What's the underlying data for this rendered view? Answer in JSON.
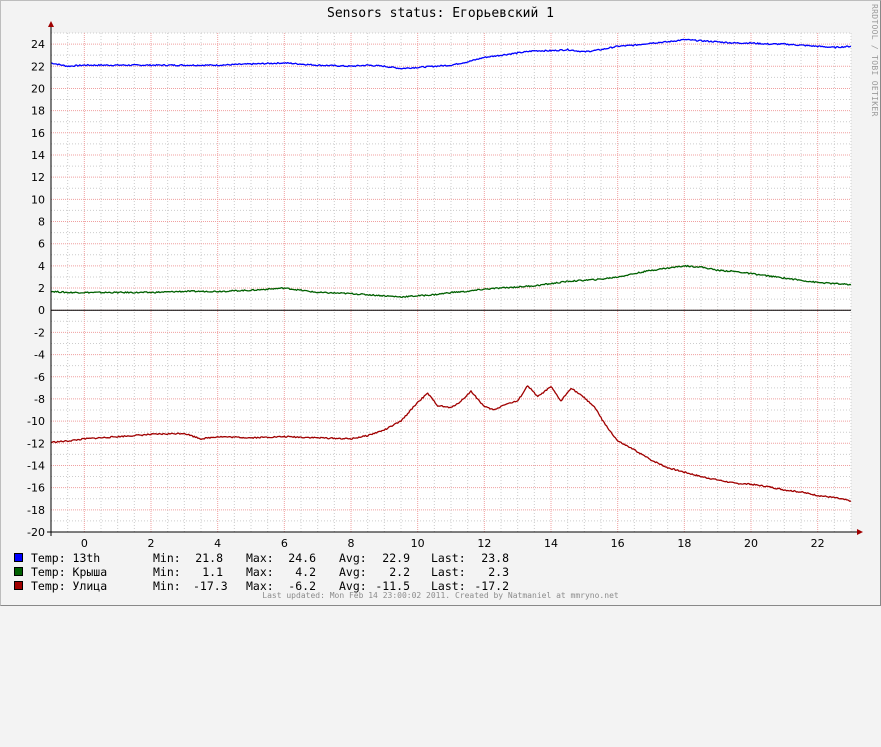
{
  "title": "Sensors status: Егорьевский 1",
  "watermark": "RRDTOOL / TOBI OETIKER",
  "footer": "Last updated: Mon Feb 14 23:00:02 2011. Created by Natmaniel at mmryno.net",
  "colors": {
    "background": "#f3f3f3",
    "plot": "#ffffff",
    "grid_major": "#f0a0a0",
    "grid_minor": "#cccccc",
    "axis_arrow": "#a00000",
    "zero_line": "#000000"
  },
  "legend": [
    {
      "label": "Temp: 13th",
      "color": "#0000ff",
      "min_label": "Min:",
      "min": "21.8",
      "max_label": "Max:",
      "max": "24.6",
      "avg_label": "Avg:",
      "avg": "22.9",
      "last_label": "Last:",
      "last": "23.8"
    },
    {
      "label": "Temp: Крыша",
      "color": "#006000",
      "min_label": "Min:",
      "min": "1.1",
      "max_label": "Max:",
      "max": "4.2",
      "avg_label": "Avg:",
      "avg": "2.2",
      "last_label": "Last:",
      "last": "2.3"
    },
    {
      "label": "Temp: Улица",
      "color": "#a00000",
      "min_label": "Min:",
      "min": "-17.3",
      "max_label": "Max:",
      "max": "-6.2",
      "avg_label": "Avg:",
      "avg": "-11.5",
      "last_label": "Last:",
      "last": "-17.2"
    }
  ],
  "chart_data": {
    "type": "line",
    "title": "Sensors status: Егорьевский 1",
    "xlim": [
      -1.0,
      23.0
    ],
    "ylim": [
      -20,
      25
    ],
    "x_ticks": [
      "0",
      "2",
      "4",
      "6",
      "8",
      "10",
      "12",
      "14",
      "16",
      "18",
      "20",
      "22"
    ],
    "y_ticks": [
      "24",
      "22",
      "20",
      "18",
      "16",
      "14",
      "12",
      "10",
      "8",
      "6",
      "4",
      "2",
      "0",
      "-2",
      "-4",
      "-6",
      "-8",
      "-10",
      "-12",
      "-14",
      "-16",
      "-18",
      "-20"
    ],
    "grid": true,
    "series": [
      {
        "name": "Temp: 13th",
        "color": "#0000ff",
        "x": [
          -1.0,
          -0.5,
          0,
          1,
          2,
          3,
          4,
          5,
          6,
          7,
          8,
          8.5,
          9,
          9.5,
          10,
          10.5,
          11,
          11.5,
          12,
          12.5,
          13,
          13.5,
          14,
          14.5,
          15,
          15.5,
          16,
          16.5,
          17,
          17.5,
          18,
          18.5,
          19,
          19.5,
          20,
          20.5,
          21,
          21.5,
          22,
          22.5,
          23.0
        ],
        "y": [
          22.3,
          22.0,
          22.1,
          22.1,
          22.1,
          22.1,
          22.1,
          22.2,
          22.3,
          22.1,
          22.0,
          22.1,
          22.0,
          21.8,
          21.9,
          22.0,
          22.1,
          22.4,
          22.8,
          23.0,
          23.2,
          23.4,
          23.4,
          23.5,
          23.3,
          23.5,
          23.8,
          23.9,
          24.1,
          24.2,
          24.4,
          24.3,
          24.2,
          24.1,
          24.1,
          24.0,
          24.0,
          23.9,
          23.8,
          23.7,
          23.8
        ]
      },
      {
        "name": "Temp: Крыша",
        "color": "#006000",
        "x": [
          -1.0,
          -0.5,
          0,
          1,
          2,
          3,
          4,
          5,
          6,
          7,
          8,
          8.5,
          9,
          9.5,
          10,
          10.5,
          11,
          11.5,
          12,
          12.5,
          13,
          13.5,
          14,
          14.5,
          15,
          15.5,
          16,
          16.5,
          17,
          17.5,
          18,
          18.5,
          19,
          19.5,
          20,
          20.5,
          21,
          21.5,
          22,
          22.5,
          23.0
        ],
        "y": [
          1.7,
          1.6,
          1.6,
          1.6,
          1.6,
          1.7,
          1.7,
          1.8,
          2.0,
          1.6,
          1.5,
          1.4,
          1.3,
          1.2,
          1.3,
          1.4,
          1.6,
          1.7,
          1.9,
          2.0,
          2.1,
          2.2,
          2.4,
          2.6,
          2.7,
          2.8,
          3.0,
          3.3,
          3.6,
          3.8,
          4.0,
          3.9,
          3.6,
          3.5,
          3.3,
          3.1,
          2.9,
          2.7,
          2.5,
          2.4,
          2.3
        ]
      },
      {
        "name": "Temp: Улица",
        "color": "#a00000",
        "x": [
          -1.0,
          -0.5,
          0,
          1,
          2,
          3,
          3.5,
          4,
          5,
          6,
          7,
          8,
          8.5,
          9,
          9.5,
          10,
          10.3,
          10.6,
          11,
          11.3,
          11.6,
          12,
          12.3,
          12.6,
          13,
          13.3,
          13.6,
          14,
          14.3,
          14.6,
          15,
          15.3,
          15.6,
          16,
          16.5,
          17,
          17.5,
          18,
          18.5,
          19,
          19.5,
          20,
          20.5,
          21,
          21.5,
          22,
          22.5,
          23.0
        ],
        "y": [
          -11.9,
          -11.8,
          -11.6,
          -11.4,
          -11.2,
          -11.1,
          -11.6,
          -11.4,
          -11.5,
          -11.4,
          -11.5,
          -11.6,
          -11.3,
          -10.8,
          -10.0,
          -8.3,
          -7.5,
          -8.6,
          -8.8,
          -8.2,
          -7.3,
          -8.7,
          -9.0,
          -8.5,
          -8.2,
          -6.8,
          -7.8,
          -6.9,
          -8.2,
          -7.0,
          -7.9,
          -8.7,
          -10.2,
          -11.8,
          -12.6,
          -13.5,
          -14.2,
          -14.6,
          -15.0,
          -15.3,
          -15.6,
          -15.7,
          -15.9,
          -16.2,
          -16.4,
          -16.7,
          -16.9,
          -17.2
        ]
      }
    ]
  }
}
